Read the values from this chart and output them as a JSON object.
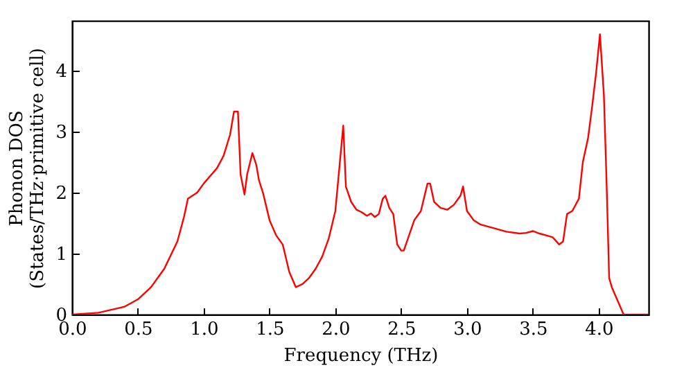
{
  "chart_data": {
    "type": "line",
    "xlabel": "Frequency (THz)",
    "ylabel": "Phonon DOS\n(States/THz·primitive cell)",
    "xlim": [
      0,
      4.38
    ],
    "ylim": [
      0,
      4.82
    ],
    "xticks": [
      {
        "value": 0,
        "label": "0.0"
      },
      {
        "value": 0.5,
        "label": "0.5"
      },
      {
        "value": 1,
        "label": "1.0"
      },
      {
        "value": 1.5,
        "label": "1.5"
      },
      {
        "value": 2,
        "label": "2.0"
      },
      {
        "value": 2.5,
        "label": "2.5"
      },
      {
        "value": 3,
        "label": "3.0"
      },
      {
        "value": 3.5,
        "label": "3.5"
      },
      {
        "value": 4,
        "label": "4.0"
      }
    ],
    "yticks": [
      0,
      1,
      2,
      3,
      4
    ],
    "grid": false,
    "line_style": "solid",
    "x": [
      0,
      0.2,
      0.4,
      0.5,
      0.6,
      0.7,
      0.8,
      0.85,
      0.88,
      0.95,
      1.0,
      1.1,
      1.15,
      1.2,
      1.23,
      1.26,
      1.28,
      1.31,
      1.33,
      1.37,
      1.4,
      1.42,
      1.45,
      1.5,
      1.55,
      1.6,
      1.65,
      1.7,
      1.75,
      1.8,
      1.85,
      1.9,
      1.95,
      2.0,
      2.03,
      2.06,
      2.08,
      2.12,
      2.16,
      2.2,
      2.24,
      2.27,
      2.3,
      2.33,
      2.36,
      2.38,
      2.41,
      2.44,
      2.47,
      2.5,
      2.52,
      2.56,
      2.6,
      2.65,
      2.7,
      2.72,
      2.75,
      2.8,
      2.85,
      2.9,
      2.95,
      2.97,
      3.0,
      3.05,
      3.1,
      3.2,
      3.3,
      3.4,
      3.45,
      3.5,
      3.55,
      3.6,
      3.65,
      3.7,
      3.73,
      3.76,
      3.8,
      3.85,
      3.88,
      3.92,
      3.95,
      3.98,
      4.01,
      4.04,
      4.06,
      4.08,
      4.1,
      4.15,
      4.19,
      4.38
    ],
    "series": [
      {
        "color": "#ff0000",
        "values": [
          0,
          0.03,
          0.13,
          0.25,
          0.45,
          0.75,
          1.2,
          1.6,
          1.9,
          2.0,
          2.15,
          2.4,
          2.6,
          2.95,
          3.33,
          3.33,
          2.3,
          1.97,
          2.3,
          2.65,
          2.45,
          2.2,
          2.0,
          1.55,
          1.3,
          1.15,
          0.7,
          0.45,
          0.5,
          0.6,
          0.75,
          0.95,
          1.25,
          1.7,
          2.4,
          3.1,
          2.1,
          1.85,
          1.72,
          1.68,
          1.62,
          1.66,
          1.6,
          1.65,
          1.9,
          1.95,
          1.75,
          1.65,
          1.15,
          1.05,
          1.05,
          1.3,
          1.55,
          1.7,
          2.15,
          2.15,
          1.85,
          1.75,
          1.72,
          1.8,
          1.95,
          2.1,
          1.7,
          1.55,
          1.48,
          1.42,
          1.36,
          1.33,
          1.34,
          1.37,
          1.33,
          1.3,
          1.27,
          1.15,
          1.2,
          1.65,
          1.7,
          1.9,
          2.5,
          2.9,
          3.4,
          3.95,
          4.6,
          3.6,
          2.2,
          0.6,
          0.45,
          0.2,
          0,
          0
        ]
      }
    ]
  }
}
